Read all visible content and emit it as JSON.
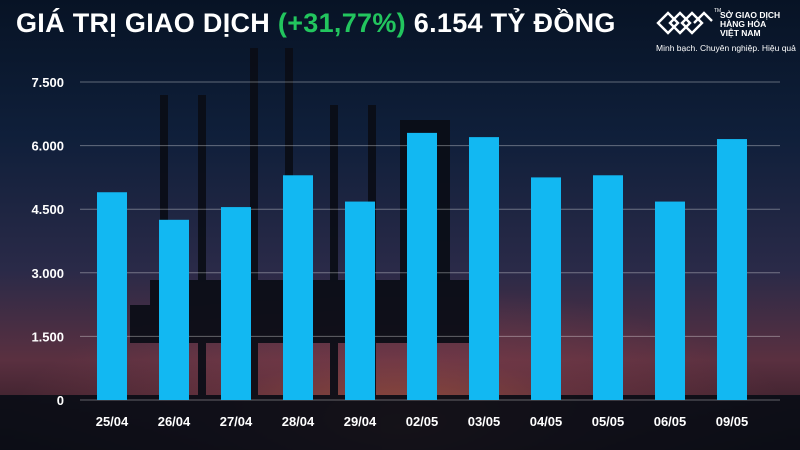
{
  "header": {
    "title_prefix": "GIÁ TRỊ GIAO DỊCH",
    "title_change": "(+31,77%)",
    "title_suffix": "6.154 TỶ ĐỒNG"
  },
  "logo": {
    "name": "SỞ GIAO DỊCH\nHÀNG HÓA\nVIỆT NAM",
    "slogan": "Minh bạch. Chuyên nghiệp. Hiệu quả",
    "superscript": "TM"
  },
  "colors": {
    "bar": "#12b8f2",
    "title_change": "#22c55e",
    "text": "#ffffff"
  },
  "chart_data": {
    "type": "bar",
    "categories": [
      "25/04",
      "26/04",
      "27/04",
      "28/04",
      "29/04",
      "02/05",
      "03/05",
      "04/05",
      "05/05",
      "06/05",
      "09/05"
    ],
    "values": [
      4900,
      4250,
      4550,
      5300,
      4680,
      6300,
      6200,
      5250,
      5300,
      4680,
      6154
    ],
    "y_ticks": [
      "0",
      "1.500",
      "3.000",
      "4.500",
      "6.000",
      "7.500"
    ],
    "y_tick_values": [
      0,
      1500,
      3000,
      4500,
      6000,
      7500
    ],
    "ylim": [
      0,
      7500
    ],
    "grid": true,
    "title": "",
    "xlabel": "",
    "ylabel": ""
  }
}
